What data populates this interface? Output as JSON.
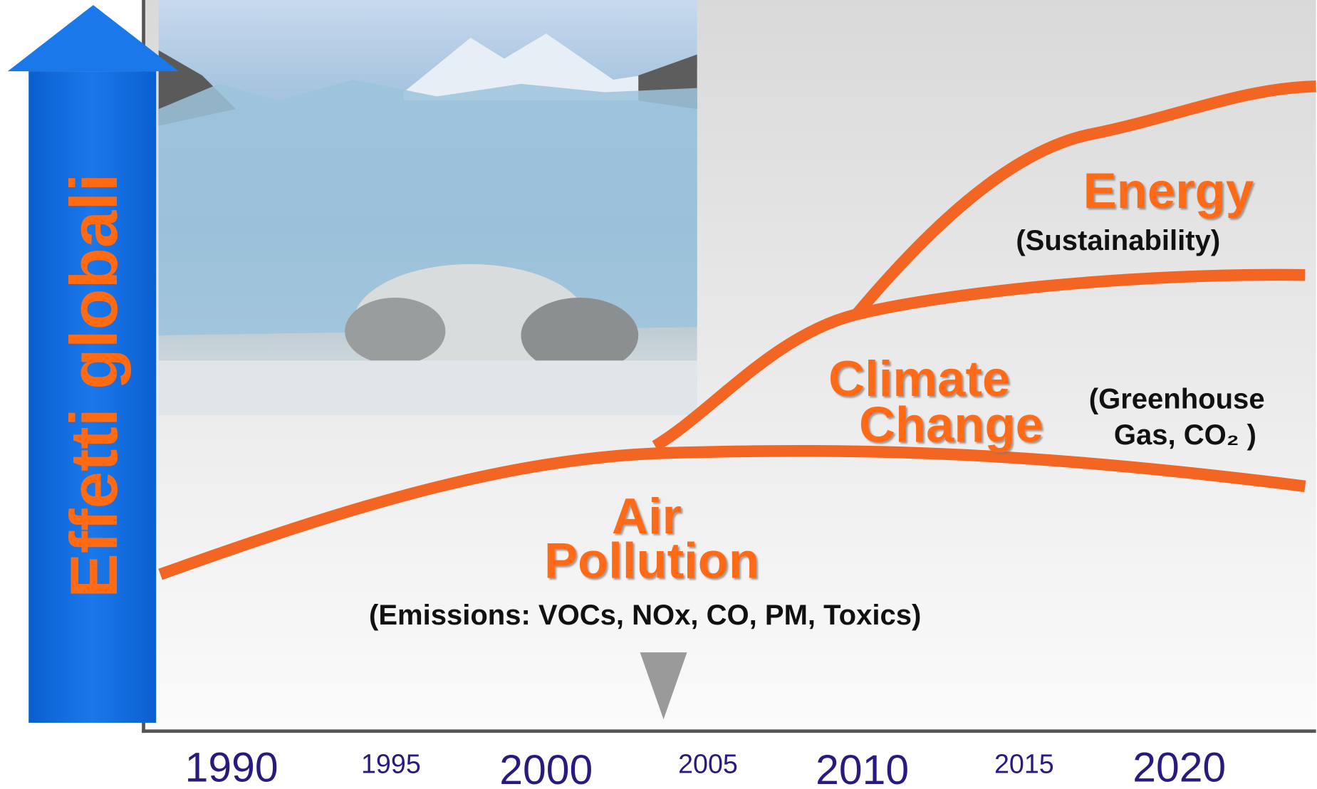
{
  "axis_label": "Effetti globali",
  "phases": [
    {
      "title_lines": [
        "Energy"
      ],
      "subtitle_lines": [
        "(Sustainability)"
      ]
    },
    {
      "title_lines": [
        "Climate",
        "Change"
      ],
      "subtitle_lines": [
        "(Greenhouse",
        "Gas, CO₂ )"
      ]
    },
    {
      "title_lines": [
        "Air",
        "Pollution"
      ],
      "subtitle_lines": [
        "(Emissions:  VOCs, NOx, CO, PM, Toxics)"
      ]
    }
  ],
  "years": [
    "1990",
    "1995",
    "2000",
    "2005",
    "2010",
    "2015",
    "2020"
  ]
}
